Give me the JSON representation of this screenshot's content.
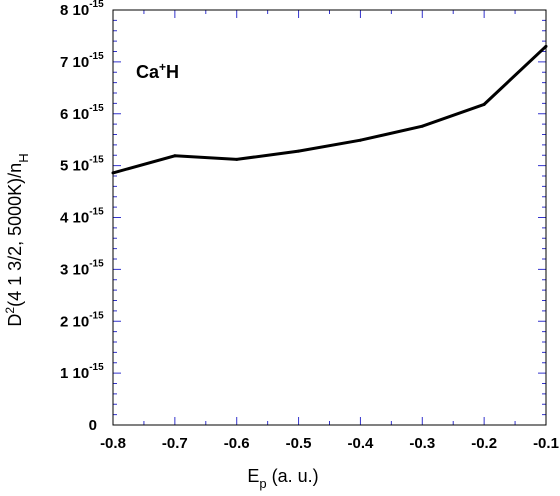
{
  "chart_data": {
    "type": "line",
    "title": "",
    "annotation": {
      "base": "Ca",
      "sup": "+",
      "tail": "H"
    },
    "xlabel": {
      "base": "E",
      "sub": "p",
      "tail": " (a. u.)"
    },
    "ylabel": {
      "base": "D",
      "sup": "2",
      "mid": "(4 1 3/2, 5000K)/n",
      "sub": "H"
    },
    "xlim": [
      -0.8,
      -0.1
    ],
    "ylim": [
      0,
      8e-15
    ],
    "x_ticks": [
      {
        "value": -0.8,
        "label": "-0.8"
      },
      {
        "value": -0.7,
        "label": "-0.7"
      },
      {
        "value": -0.6,
        "label": "-0.6"
      },
      {
        "value": -0.5,
        "label": "-0.5"
      },
      {
        "value": -0.4,
        "label": "-0.4"
      },
      {
        "value": -0.3,
        "label": "-0.3"
      },
      {
        "value": -0.2,
        "label": "-0.2"
      },
      {
        "value": -0.1,
        "label": "-0.1"
      }
    ],
    "y_ticks": [
      {
        "value": 0,
        "label": "0",
        "exp": ""
      },
      {
        "value": 1e-15,
        "label": "1 10",
        "exp": "-15"
      },
      {
        "value": 2e-15,
        "label": "2 10",
        "exp": "-15"
      },
      {
        "value": 3e-15,
        "label": "3 10",
        "exp": "-15"
      },
      {
        "value": 4e-15,
        "label": "4 10",
        "exp": "-15"
      },
      {
        "value": 5e-15,
        "label": "5 10",
        "exp": "-15"
      },
      {
        "value": 6e-15,
        "label": "6 10",
        "exp": "-15"
      },
      {
        "value": 7e-15,
        "label": "7 10",
        "exp": "-15"
      },
      {
        "value": 8e-15,
        "label": "8 10",
        "exp": "-15"
      }
    ],
    "series": [
      {
        "x": [
          -0.8,
          -0.7,
          -0.6,
          -0.5,
          -0.4,
          -0.3,
          -0.2,
          -0.1
        ],
        "y": [
          4.86e-15,
          5.19e-15,
          5.12e-15,
          5.28e-15,
          5.49e-15,
          5.76e-15,
          6.18e-15,
          7.3e-15
        ]
      }
    ],
    "grid": false,
    "colors": {
      "line": "#000000",
      "frame": "#000000",
      "ticks": "#3333cc"
    }
  }
}
